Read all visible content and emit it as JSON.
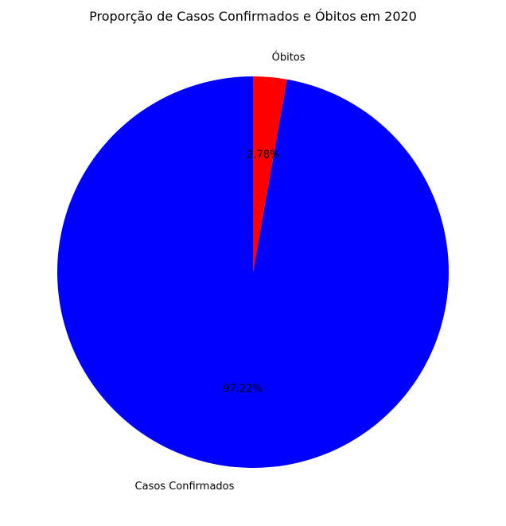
{
  "chart_data": {
    "type": "pie",
    "title": "Proporção de Casos Confirmados e Óbitos em 2020",
    "slices": [
      {
        "label": "Casos Confirmados",
        "value": 97.22,
        "percent_label": "97.22%",
        "color": "#0000ff"
      },
      {
        "label": "Óbitos",
        "value": 2.78,
        "percent_label": "2.78%",
        "color": "#ff0000"
      }
    ],
    "start_angle_deg": 90,
    "direction": "counterclockwise",
    "legend": "none"
  }
}
